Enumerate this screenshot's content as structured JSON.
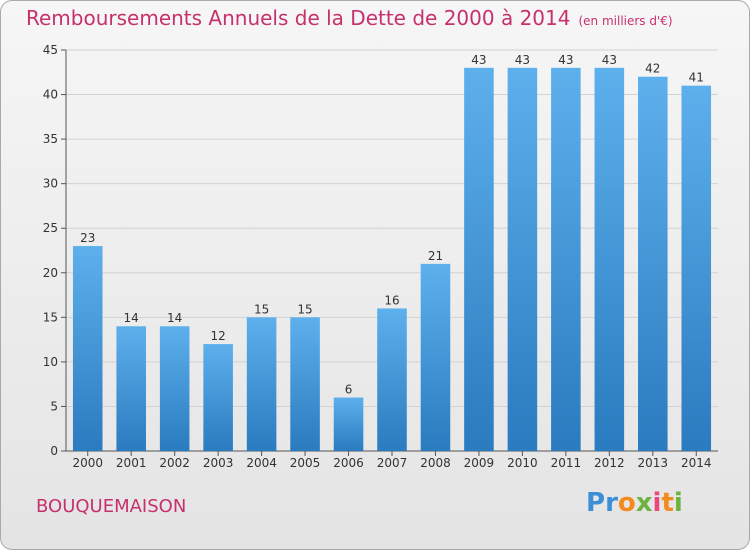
{
  "title": "Remboursements Annuels de la Dette de 2000 à 2014",
  "subtitle": "(en milliers d'€)",
  "commune": "BOUQUEMAISON",
  "brand": "Proxiti",
  "colors": {
    "bar": "#4aa3e3",
    "bar_dark": "#2878bd",
    "title": "#c7316b",
    "grid": "#cfcfcf"
  },
  "chart_data": {
    "type": "bar",
    "categories": [
      "2000",
      "2001",
      "2002",
      "2003",
      "2004",
      "2005",
      "2006",
      "2007",
      "2008",
      "2009",
      "2010",
      "2011",
      "2012",
      "2013",
      "2014"
    ],
    "values": [
      23,
      14,
      14,
      12,
      15,
      15,
      6,
      16,
      21,
      43,
      43,
      43,
      43,
      42,
      41
    ],
    "ylim": [
      0,
      45
    ],
    "yticks": [
      0,
      5,
      10,
      15,
      20,
      25,
      30,
      35,
      40,
      45
    ],
    "grid": true,
    "xlabel": "",
    "ylabel": ""
  }
}
